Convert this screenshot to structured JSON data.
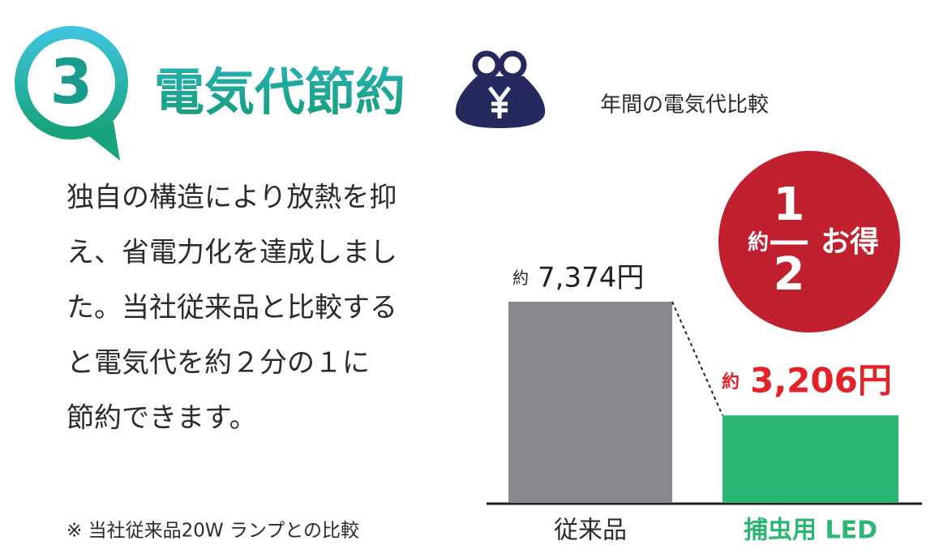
{
  "header": {
    "number": "3",
    "title": "電気代節約"
  },
  "body": {
    "lines": [
      "独自の構造により放熱を抑",
      "え、省電力化を達成しまし",
      "た。当社従来品と比較する",
      "と電気代を約２分の１に",
      "節約できます。"
    ],
    "note": "※ 当社従来品20W ランプとの比較"
  },
  "chart_data": {
    "type": "bar",
    "title": "年間の電気代比較",
    "categories": [
      "従来品",
      "捕虫用 LED"
    ],
    "values": [
      7374,
      3206
    ],
    "value_labels": [
      "7,374円",
      "3,206円"
    ],
    "value_prefix": "約",
    "colors": [
      "#87888b",
      "#2bb673"
    ],
    "badge": {
      "prefix": "約",
      "numerator": "1",
      "denominator": "2",
      "suffix": "お得"
    }
  }
}
